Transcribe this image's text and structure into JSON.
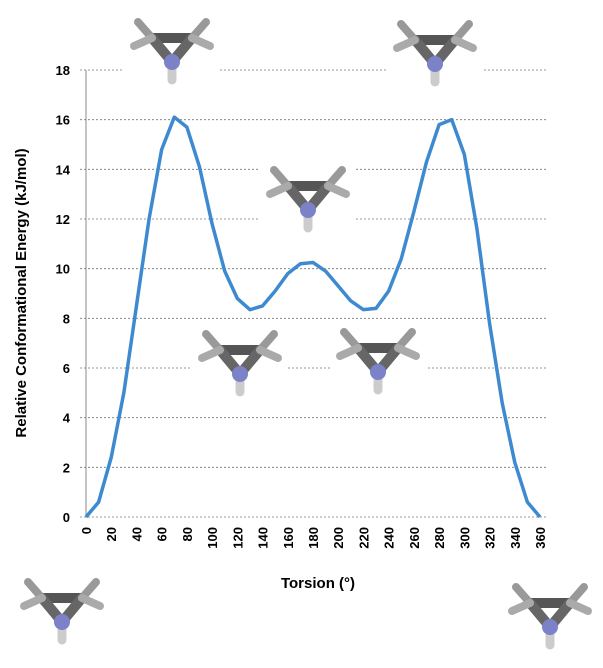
{
  "chart_data": {
    "type": "line",
    "x_label": "Torsion (°)",
    "y_label": "Relative Conformational Energy (kJ/mol)",
    "x": [
      0,
      10,
      20,
      30,
      40,
      50,
      60,
      70,
      80,
      90,
      100,
      110,
      120,
      130,
      140,
      150,
      160,
      170,
      180,
      190,
      200,
      210,
      220,
      230,
      240,
      250,
      260,
      270,
      280,
      290,
      300,
      310,
      320,
      330,
      340,
      350,
      360
    ],
    "series": [
      {
        "color": "#3d8ad0",
        "values": [
          0,
          0.6,
          2.4,
          5.0,
          8.5,
          12.0,
          14.8,
          16.1,
          15.7,
          14.1,
          11.8,
          9.9,
          8.8,
          8.35,
          8.5,
          9.1,
          9.8,
          10.2,
          10.25,
          9.9,
          9.3,
          8.7,
          8.35,
          8.4,
          9.1,
          10.4,
          12.3,
          14.3,
          15.8,
          16.0,
          14.6,
          11.6,
          7.8,
          4.6,
          2.2,
          0.6,
          0
        ]
      }
    ],
    "xlim": [
      0,
      360
    ],
    "xticks": [
      0,
      20,
      40,
      60,
      80,
      100,
      120,
      140,
      160,
      180,
      200,
      220,
      240,
      260,
      280,
      300,
      320,
      340,
      360
    ],
    "ylim": [
      0,
      18
    ],
    "yticks": [
      0,
      2,
      4,
      6,
      8,
      10,
      12,
      14,
      16,
      18
    ],
    "grid": true
  }
}
